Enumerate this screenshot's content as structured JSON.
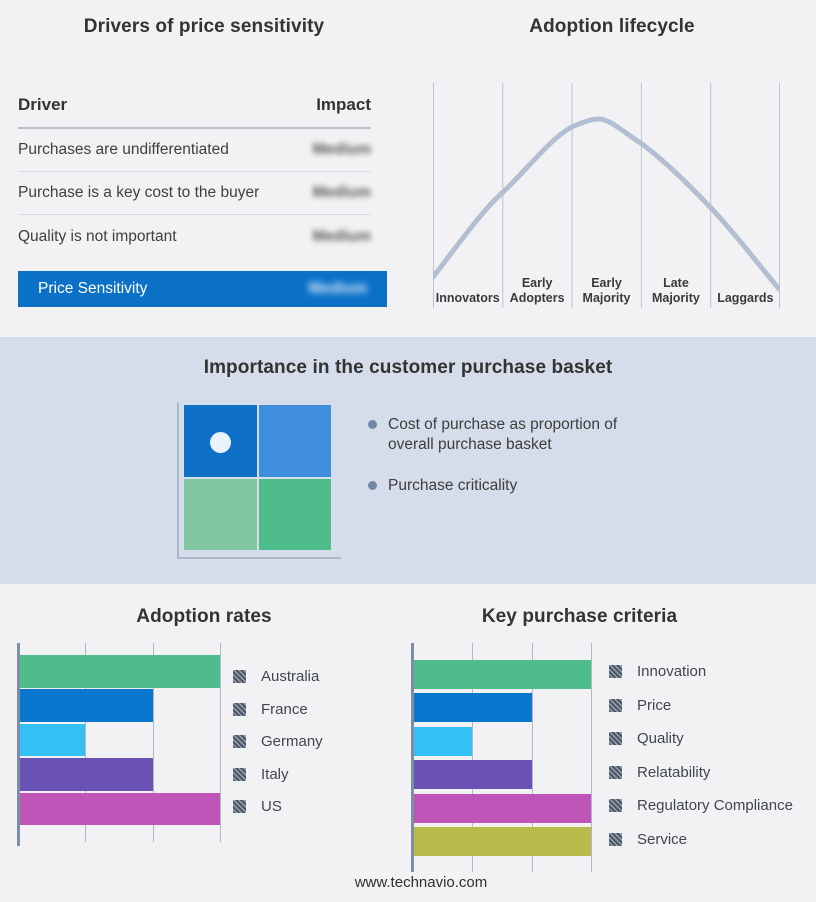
{
  "drivers": {
    "title": "Drivers of price sensitivity",
    "columns": [
      "Driver",
      "Impact"
    ],
    "rows": [
      {
        "driver": "Purchases are undifferentiated",
        "impact": "Medium"
      },
      {
        "driver": "Purchase is a key cost to the buyer",
        "impact": "Medium"
      },
      {
        "driver": "Quality is not important",
        "impact": "Medium"
      }
    ],
    "impact_values_blurred": true,
    "highlight": {
      "label": "Price Sensitivity",
      "impact": "Medium",
      "color": "#0b71c6"
    }
  },
  "basket": {
    "title": "Importance in the customer purchase basket",
    "bullets": [
      "Cost of purchase as proportion of overall purchase basket",
      "Purchase criticality"
    ],
    "band_color": "#d4dde9",
    "quadrant_colors": {
      "top_left": "#0f70c8",
      "top_right": "#3e8edd",
      "bottom_left": "#80c7a2",
      "bottom_right": "#4fbc8b"
    },
    "dot_color": "#e9f3fa"
  },
  "chart_data": [
    {
      "type": "line",
      "title": "Adoption lifecycle",
      "shape": "bell curve",
      "categories": [
        "Innovators",
        "Early Adopters",
        "Early Majority",
        "Late Majority",
        "Laggards"
      ],
      "peak_at": "Early Majority",
      "curve_color": "#b2bfd3",
      "grid": "vertical segment dividers, no axis values"
    },
    {
      "type": "bar",
      "orientation": "horizontal",
      "title": "Adoption rates",
      "categories": [
        "Australia",
        "France",
        "Germany",
        "Italy",
        "US"
      ],
      "values": [
        3,
        2,
        1,
        2,
        3
      ],
      "xlim": [
        0,
        3
      ],
      "value_units": "relative (unlabeled gridlines)",
      "colors": [
        "#4fbc8b",
        "#0877cd",
        "#33c1f5",
        "#6a52b5",
        "#c055b9"
      ],
      "legend_position": "right",
      "legend_swatch_style": "hatched-gray",
      "grid": true
    },
    {
      "type": "bar",
      "orientation": "horizontal",
      "title": "Key purchase criteria",
      "categories": [
        "Innovation",
        "Price",
        "Quality",
        "Relatability",
        "Regulatory Compliance",
        "Service"
      ],
      "values": [
        3,
        2,
        1,
        2,
        3,
        3
      ],
      "xlim": [
        0,
        3
      ],
      "value_units": "relative (unlabeled gridlines)",
      "colors": [
        "#4fbc8b",
        "#0877cd",
        "#33c1f5",
        "#6a52b5",
        "#c055b9",
        "#b9bb4d"
      ],
      "legend_position": "right",
      "legend_swatch_style": "hatched-gray",
      "grid": true
    }
  ],
  "footer": {
    "url": "www.technavio.com"
  }
}
